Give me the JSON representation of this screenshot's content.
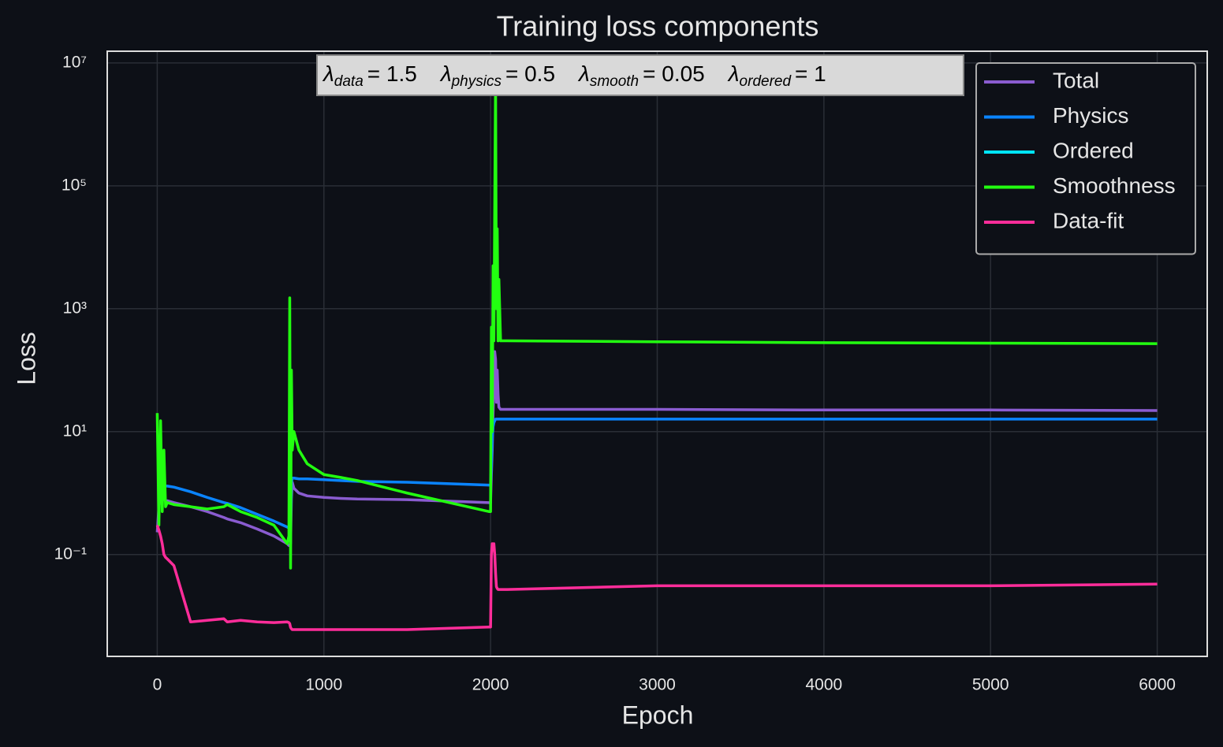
{
  "chart_data": {
    "type": "line",
    "title": "Training loss components",
    "x_label": "Epoch",
    "y_label": "Loss",
    "log_y": true,
    "grid": true,
    "legend": "upper right",
    "annotation": [
      {
        "symbol": "λ",
        "subscript": "data",
        "text": "= 1.5"
      },
      {
        "symbol": "λ",
        "subscript": "physics",
        "text": "= 0.5"
      },
      {
        "symbol": "λ",
        "subscript": "smooth",
        "text": "= 0.05"
      },
      {
        "symbol": "λ",
        "subscript": "ordered",
        "text": "= 1"
      }
    ],
    "xlim": [
      -300,
      6300
    ],
    "xticks": [
      0,
      1000,
      2000,
      3000,
      4000,
      5000,
      6000
    ],
    "ylim": [
      0.0022,
      15500000
    ],
    "yticks": [
      {
        "value": 0.1,
        "label": "10⁻¹"
      },
      {
        "value": 10,
        "label": "10¹"
      },
      {
        "value": 1000,
        "label": "10³"
      },
      {
        "value": 100000,
        "label": "10⁵"
      },
      {
        "value": 10000000,
        "label": "10⁷"
      }
    ],
    "x": [
      0,
      10,
      20,
      30,
      40,
      50,
      60,
      100,
      200,
      300,
      400,
      420,
      500,
      600,
      700,
      780,
      790,
      795,
      800,
      805,
      810,
      820,
      850,
      900,
      1000,
      1100,
      1200,
      1500,
      1990,
      2000,
      2005,
      2010,
      2015,
      2020,
      2025,
      2030,
      2035,
      2040,
      2045,
      2050,
      2060,
      2080,
      2100,
      3000,
      4000,
      5000,
      6000
    ],
    "series": [
      {
        "name": "Total",
        "color": "#8a5cd0",
        "values": [
          0.23,
          0.6,
          0.9,
          0.85,
          0.8,
          0.75,
          0.75,
          0.7,
          0.6,
          0.5,
          0.4,
          0.38,
          0.33,
          0.26,
          0.2,
          0.15,
          0.14,
          0.14,
          0.15,
          0.8,
          1.5,
          1.2,
          1.0,
          0.9,
          0.85,
          0.82,
          0.8,
          0.78,
          0.7,
          0.7,
          2,
          5,
          20,
          50,
          200,
          150,
          30,
          100,
          40,
          25,
          23,
          23,
          23,
          23,
          22.5,
          22.5,
          22
        ]
      },
      {
        "name": "Physics",
        "color": "#0a84ff",
        "values": [
          1.4,
          1.4,
          1.4,
          1.35,
          1.3,
          1.3,
          1.3,
          1.25,
          1.05,
          0.85,
          0.7,
          0.68,
          0.58,
          0.45,
          0.35,
          0.28,
          0.27,
          0.27,
          0.28,
          1.5,
          1.75,
          1.75,
          1.7,
          1.7,
          1.65,
          1.6,
          1.55,
          1.5,
          1.35,
          1.35,
          3,
          8,
          12,
          14,
          15,
          16,
          16,
          16,
          16,
          16,
          16,
          16,
          16,
          16,
          16,
          16,
          16
        ]
      },
      {
        "name": "Ordered",
        "color": "#00e5ff",
        "values": [
          null,
          null,
          null,
          null,
          null,
          null,
          null,
          null,
          null,
          null,
          null,
          null,
          null,
          null,
          null,
          null,
          null,
          null,
          null,
          null,
          null,
          null,
          null,
          null,
          null,
          null,
          null,
          null,
          null,
          null,
          null,
          null,
          null,
          null,
          null,
          null,
          null,
          null,
          null,
          null,
          null,
          null,
          null,
          null,
          null,
          null,
          null
        ]
      },
      {
        "name": "Smoothness",
        "color": "#22ff10",
        "values": [
          20,
          0.3,
          15,
          0.5,
          5,
          0.6,
          0.7,
          0.65,
          0.6,
          0.55,
          0.6,
          0.65,
          0.5,
          0.4,
          0.3,
          0.15,
          0.2,
          1500,
          0.06,
          100,
          5,
          10,
          5,
          3,
          2,
          1.8,
          1.6,
          1.0,
          0.5,
          0.5,
          500,
          10,
          5000,
          300,
          50000,
          5000000,
          1000,
          20000,
          300,
          3000,
          300,
          300,
          300,
          290,
          280,
          275,
          270
        ]
      },
      {
        "name": "Data-fit",
        "color": "#ff2d9a",
        "values": [
          0.3,
          0.25,
          0.2,
          0.15,
          0.1,
          0.09,
          0.085,
          0.066,
          0.008,
          0.0085,
          0.009,
          0.008,
          0.0085,
          0.008,
          0.0078,
          0.008,
          0.0078,
          0.0075,
          0.0065,
          0.0062,
          0.006,
          0.006,
          0.006,
          0.006,
          0.006,
          0.006,
          0.006,
          0.006,
          0.0066,
          0.0066,
          0.1,
          0.15,
          0.12,
          0.15,
          0.1,
          0.05,
          0.03,
          0.028,
          0.027,
          0.027,
          0.027,
          0.027,
          0.027,
          0.031,
          0.031,
          0.031,
          0.033
        ]
      }
    ]
  }
}
